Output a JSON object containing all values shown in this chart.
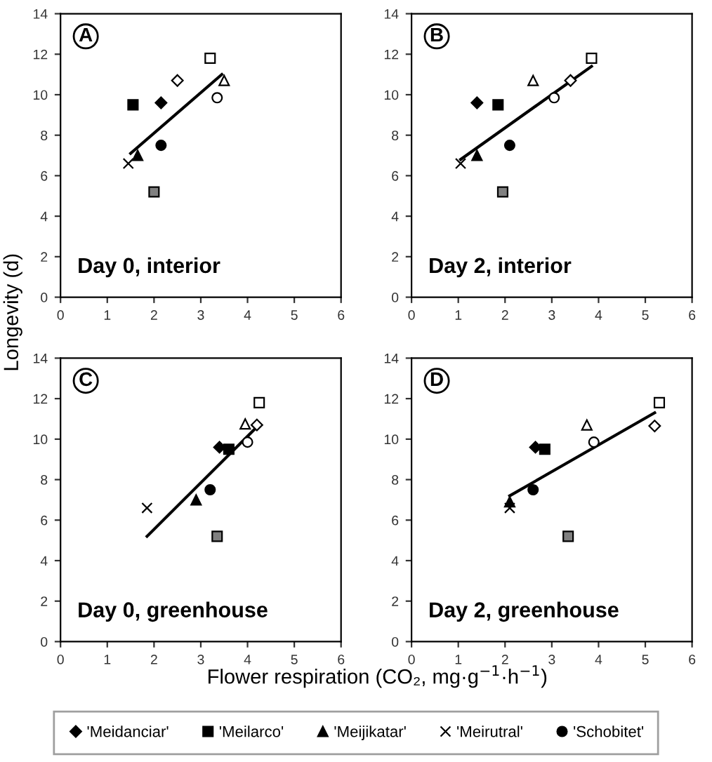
{
  "chart_data": [
    {
      "type": "scatter",
      "ylabel": "Longevity (d)",
      "legend": "bottom",
      "annotations": [
        "A",
        "Day 0, interior"
      ],
      "xlim": [
        0,
        6
      ],
      "ylim": [
        0,
        14
      ],
      "xticks": [
        0,
        1,
        2,
        3,
        4,
        5,
        6
      ],
      "yticks": [
        0,
        2,
        4,
        6,
        8,
        10,
        12,
        14
      ],
      "grid": false,
      "series": [
        {
          "name": "'Meidanciar'",
          "color": "#000000",
          "marker": "diamond",
          "x": [
            2.15
          ],
          "values": [
            9.6
          ]
        },
        {
          "name": "'Meilarco'",
          "color": "#000000",
          "marker": "square",
          "x": [
            1.55
          ],
          "values": [
            9.5
          ]
        },
        {
          "name": "'Meijikatar'",
          "color": "#000000",
          "marker": "triangle",
          "x": [
            1.65
          ],
          "values": [
            7.0
          ]
        },
        {
          "name": "'Meirutral'",
          "color": "#000000",
          "marker": "cross",
          "x": [
            1.45
          ],
          "values": [
            6.6
          ]
        },
        {
          "name": "'Schobitet'",
          "color": "#000000",
          "marker": "circle",
          "x": [
            2.15
          ],
          "values": [
            7.5
          ]
        },
        {
          "color": "#ffffff",
          "marker": "square",
          "x": [
            3.2
          ],
          "values": [
            11.8
          ]
        },
        {
          "color": "#ffffff",
          "marker": "diamond",
          "x": [
            2.5
          ],
          "values": [
            10.7
          ]
        },
        {
          "color": "#ffffff",
          "marker": "triangle",
          "x": [
            3.5
          ],
          "values": [
            10.7
          ]
        },
        {
          "color": "#ffffff",
          "marker": "circle",
          "x": [
            3.35
          ],
          "values": [
            9.85
          ]
        },
        {
          "color": "#808080",
          "marker": "square",
          "x": [
            2.0
          ],
          "values": [
            5.2
          ]
        },
        {
          "type": "line",
          "color": "#000000",
          "marker": "none",
          "x": [
            1.5,
            3.45
          ],
          "values": [
            7.1,
            11.0
          ]
        }
      ]
    },
    {
      "type": "scatter",
      "annotations": [
        "B",
        "Day 2, interior"
      ],
      "xlim": [
        0,
        6
      ],
      "ylim": [
        0,
        14
      ],
      "xticks": [
        0,
        1,
        2,
        3,
        4,
        5,
        6
      ],
      "yticks": [
        0,
        2,
        4,
        6,
        8,
        10,
        12,
        14
      ],
      "grid": false,
      "series": [
        {
          "color": "#000000",
          "marker": "diamond",
          "x": [
            1.4
          ],
          "values": [
            9.6
          ]
        },
        {
          "color": "#000000",
          "marker": "square",
          "x": [
            1.85
          ],
          "values": [
            9.5
          ]
        },
        {
          "color": "#000000",
          "marker": "triangle",
          "x": [
            1.4
          ],
          "values": [
            7.0
          ]
        },
        {
          "color": "#000000",
          "marker": "cross",
          "x": [
            1.05
          ],
          "values": [
            6.6
          ]
        },
        {
          "color": "#000000",
          "marker": "circle",
          "x": [
            2.1
          ],
          "values": [
            7.5
          ]
        },
        {
          "color": "#ffffff",
          "marker": "square",
          "x": [
            3.85
          ],
          "values": [
            11.8
          ]
        },
        {
          "color": "#ffffff",
          "marker": "diamond",
          "x": [
            3.4
          ],
          "values": [
            10.7
          ]
        },
        {
          "color": "#ffffff",
          "marker": "triangle",
          "x": [
            2.6
          ],
          "values": [
            10.7
          ]
        },
        {
          "color": "#ffffff",
          "marker": "circle",
          "x": [
            3.05
          ],
          "values": [
            9.85
          ]
        },
        {
          "color": "#808080",
          "marker": "square",
          "x": [
            1.95
          ],
          "values": [
            5.2
          ]
        },
        {
          "type": "line",
          "color": "#000000",
          "marker": "none",
          "x": [
            1.05,
            3.85
          ],
          "values": [
            6.8,
            11.4
          ]
        }
      ]
    },
    {
      "type": "scatter",
      "xlabel": "Flower respiration (CO₂, mg·g$^{−1}$·h$^{−1}$)",
      "annotations": [
        "C",
        "Day 0, greenhouse"
      ],
      "xlim": [
        0,
        6
      ],
      "ylim": [
        0,
        14
      ],
      "xticks": [
        0,
        1,
        2,
        3,
        4,
        5,
        6
      ],
      "yticks": [
        0,
        2,
        4,
        6,
        8,
        10,
        12,
        14
      ],
      "grid": false,
      "series": [
        {
          "color": "#000000",
          "marker": "diamond",
          "x": [
            3.4
          ],
          "values": [
            9.6
          ]
        },
        {
          "color": "#000000",
          "marker": "square",
          "x": [
            3.6
          ],
          "values": [
            9.5
          ]
        },
        {
          "color": "#000000",
          "marker": "triangle",
          "x": [
            2.9
          ],
          "values": [
            7.0
          ]
        },
        {
          "color": "#000000",
          "marker": "cross",
          "x": [
            1.85
          ],
          "values": [
            6.6
          ]
        },
        {
          "color": "#000000",
          "marker": "circle",
          "x": [
            3.2
          ],
          "values": [
            7.5
          ]
        },
        {
          "color": "#ffffff",
          "marker": "square",
          "x": [
            4.25
          ],
          "values": [
            11.8
          ]
        },
        {
          "color": "#ffffff",
          "marker": "diamond",
          "x": [
            4.2
          ],
          "values": [
            10.7
          ]
        },
        {
          "color": "#ffffff",
          "marker": "triangle",
          "x": [
            3.95
          ],
          "values": [
            10.75
          ]
        },
        {
          "color": "#ffffff",
          "marker": "circle",
          "x": [
            4.0
          ],
          "values": [
            9.85
          ]
        },
        {
          "color": "#808080",
          "marker": "square",
          "x": [
            3.35
          ],
          "values": [
            5.2
          ]
        },
        {
          "type": "line",
          "color": "#000000",
          "marker": "none",
          "x": [
            1.85,
            4.2
          ],
          "values": [
            5.2,
            10.6
          ]
        }
      ]
    },
    {
      "type": "scatter",
      "annotations": [
        "D",
        "Day 2, greenhouse"
      ],
      "xlim": [
        0,
        6
      ],
      "ylim": [
        0,
        14
      ],
      "xticks": [
        0,
        1,
        2,
        3,
        4,
        5,
        6
      ],
      "yticks": [
        0,
        2,
        4,
        6,
        8,
        10,
        12,
        14
      ],
      "grid": false,
      "series": [
        {
          "color": "#000000",
          "marker": "diamond",
          "x": [
            2.65
          ],
          "values": [
            9.6
          ]
        },
        {
          "color": "#000000",
          "marker": "square",
          "x": [
            2.85
          ],
          "values": [
            9.5
          ]
        },
        {
          "color": "#000000",
          "marker": "triangle",
          "x": [
            2.1
          ],
          "values": [
            6.9
          ]
        },
        {
          "color": "#000000",
          "marker": "cross",
          "x": [
            2.1
          ],
          "values": [
            6.6
          ]
        },
        {
          "color": "#000000",
          "marker": "circle",
          "x": [
            2.6
          ],
          "values": [
            7.5
          ]
        },
        {
          "color": "#ffffff",
          "marker": "square",
          "x": [
            5.3
          ],
          "values": [
            11.8
          ]
        },
        {
          "color": "#ffffff",
          "marker": "diamond",
          "x": [
            5.2
          ],
          "values": [
            10.65
          ]
        },
        {
          "color": "#ffffff",
          "marker": "triangle",
          "x": [
            3.75
          ],
          "values": [
            10.7
          ]
        },
        {
          "color": "#ffffff",
          "marker": "circle",
          "x": [
            3.9
          ],
          "values": [
            9.85
          ]
        },
        {
          "color": "#808080",
          "marker": "square",
          "x": [
            3.35
          ],
          "values": [
            5.2
          ]
        },
        {
          "type": "line",
          "color": "#000000",
          "marker": "none",
          "x": [
            2.1,
            5.2
          ],
          "values": [
            7.2,
            11.3
          ]
        }
      ]
    }
  ]
}
